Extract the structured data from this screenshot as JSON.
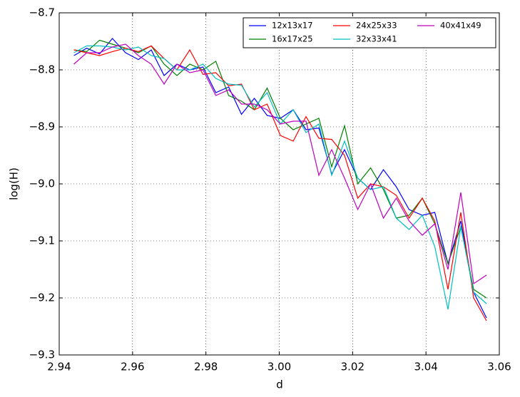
{
  "chart_data": {
    "type": "line",
    "xlabel": "d",
    "ylabel": "log(H)",
    "x": [
      2.944,
      2.9475,
      2.951,
      2.9545,
      2.9581,
      2.9616,
      2.9651,
      2.9686,
      2.9721,
      2.9756,
      2.9792,
      2.9827,
      2.9862,
      2.9897,
      2.9932,
      2.9967,
      3.0003,
      3.0038,
      3.0073,
      3.0108,
      3.0143,
      3.0178,
      3.0214,
      3.0249,
      3.0284,
      3.0319,
      3.0354,
      3.039,
      3.0424,
      3.046,
      3.0495,
      3.053,
      3.0565
    ],
    "series": [
      {
        "name": "12x13x17",
        "color": "#0000ff",
        "values": [
          -8.775,
          -8.762,
          -8.772,
          -8.745,
          -8.77,
          -8.782,
          -8.765,
          -8.81,
          -8.79,
          -8.8,
          -8.795,
          -8.84,
          -8.83,
          -8.878,
          -8.85,
          -8.88,
          -8.885,
          -8.87,
          -8.905,
          -8.902,
          -8.983,
          -8.94,
          -8.99,
          -9.01,
          -8.975,
          -9.005,
          -9.045,
          -9.055,
          -9.05,
          -9.14,
          -9.065,
          -9.19,
          -9.235
        ]
      },
      {
        "name": "16x17x25",
        "color": "#008000",
        "values": [
          -8.765,
          -8.768,
          -8.748,
          -8.755,
          -8.762,
          -8.77,
          -8.758,
          -8.79,
          -8.81,
          -8.79,
          -8.8,
          -8.785,
          -8.845,
          -8.855,
          -8.87,
          -8.832,
          -8.885,
          -8.905,
          -8.895,
          -8.885,
          -8.97,
          -8.898,
          -9.0,
          -8.972,
          -9.01,
          -9.06,
          -9.055,
          -9.025,
          -9.07,
          -9.14,
          -9.075,
          -9.185,
          -9.2
        ]
      },
      {
        "name": "24x25x33",
        "color": "#ff0000",
        "values": [
          -8.765,
          -8.77,
          -8.775,
          -8.768,
          -8.762,
          -8.768,
          -8.758,
          -8.78,
          -8.8,
          -8.765,
          -8.808,
          -8.805,
          -8.828,
          -8.825,
          -8.87,
          -8.86,
          -8.915,
          -8.925,
          -8.882,
          -8.92,
          -8.922,
          -8.95,
          -9.025,
          -9.0,
          -9.005,
          -9.02,
          -9.06,
          -9.025,
          -9.065,
          -9.185,
          -9.05,
          -9.2,
          -9.24
        ]
      },
      {
        "name": "32x33x41",
        "color": "#00bfbf",
        "values": [
          -8.77,
          -8.758,
          -8.758,
          -8.76,
          -8.765,
          -8.76,
          -8.775,
          -8.78,
          -8.8,
          -8.8,
          -8.79,
          -8.815,
          -8.825,
          -8.827,
          -8.865,
          -8.84,
          -8.895,
          -8.87,
          -8.91,
          -8.895,
          -8.985,
          -8.925,
          -8.99,
          -9.01,
          -9.005,
          -9.06,
          -9.08,
          -9.055,
          -9.11,
          -9.22,
          -9.075,
          -9.19,
          -9.21
        ]
      },
      {
        "name": "40x41x49",
        "color": "#bf00bf",
        "values": [
          -8.79,
          -8.77,
          -8.77,
          -8.76,
          -8.755,
          -8.775,
          -8.79,
          -8.825,
          -8.79,
          -8.805,
          -8.8,
          -8.845,
          -8.835,
          -8.86,
          -8.86,
          -8.87,
          -8.895,
          -8.89,
          -8.89,
          -8.985,
          -8.94,
          -8.99,
          -9.045,
          -9.0,
          -9.06,
          -9.025,
          -9.065,
          -9.09,
          -9.07,
          -9.15,
          -9.015,
          -9.175,
          -9.16
        ]
      }
    ],
    "xlim": [
      2.94,
      3.06
    ],
    "xticks": [
      2.94,
      2.96,
      2.98,
      {
        "value": 3,
        "label": "3.00"
      },
      3.02,
      3.04,
      3.06
    ],
    "ylim": [
      -9.3,
      -8.7
    ],
    "yticks": [
      {
        "value": -9.3,
        "label": "−9.3"
      },
      {
        "value": -9.2,
        "label": "−9.2"
      },
      {
        "value": -9.1,
        "label": "−9.1"
      },
      {
        "value": -9.0,
        "label": "−9.0"
      },
      {
        "value": -8.9,
        "label": "−8.9"
      },
      {
        "value": -8.8,
        "label": "−8.8"
      },
      {
        "value": -8.7,
        "label": "−8.7"
      }
    ],
    "grid": true,
    "legend": "upper right"
  }
}
